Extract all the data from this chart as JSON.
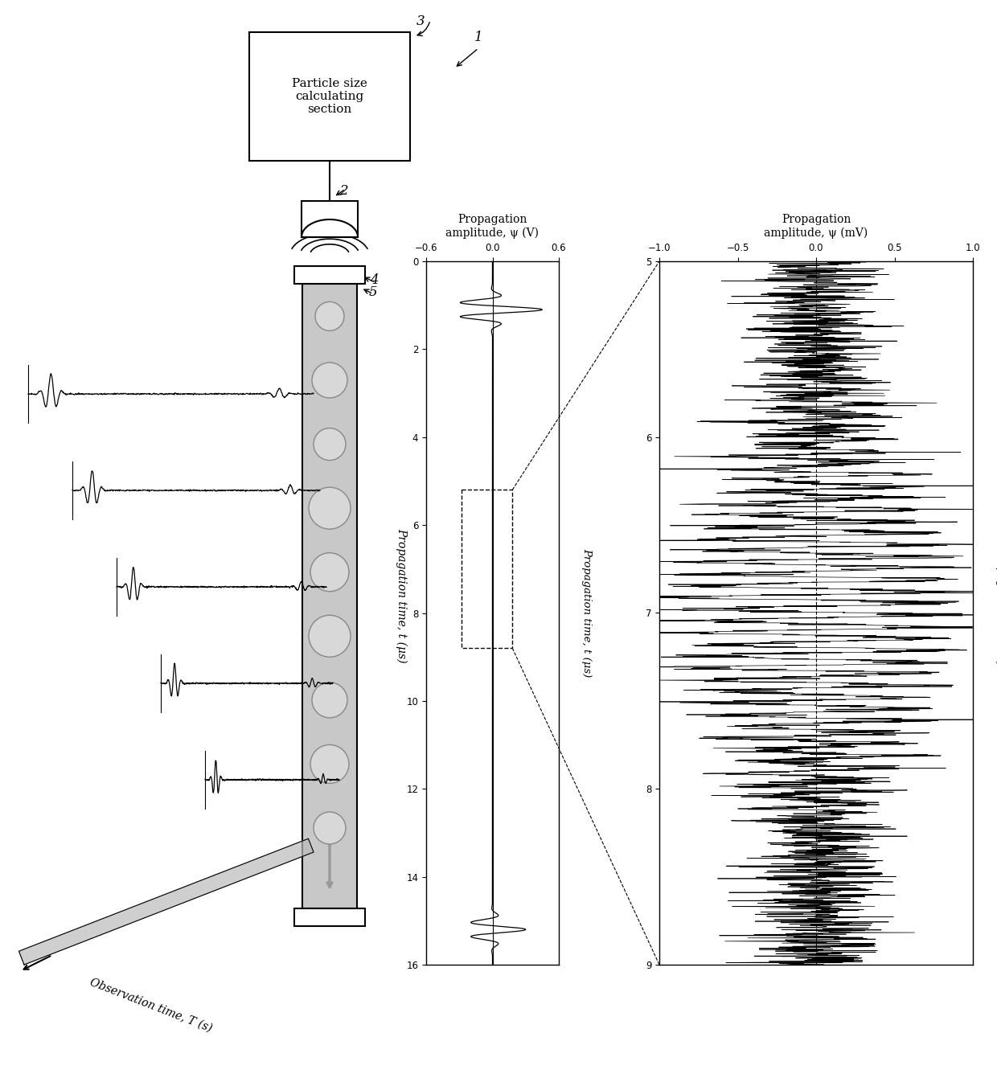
{
  "bg_color": "#ffffff",
  "box_label": "Particle size\ncalculating\nsection",
  "label_1": "1",
  "label_2": "2",
  "label_3": "3",
  "label_4": "4",
  "label_5": "5",
  "graph1_title_line1": "Propagation",
  "graph1_title_line2": "amplitude, ψ (V)",
  "graph2_title_line1": "Propagation",
  "graph2_title_line2": "amplitude, ψ (mV)",
  "graph1_xlabel": "Propagation time, t (μs)",
  "graph2_xlabel": "Propagation time, t (μs)",
  "obs_label": "Observation time, T (s)",
  "prop_label": "Propagation time, t (μs)",
  "graph1_xlim": [
    -0.6,
    0.6
  ],
  "graph1_ylim": [
    0,
    16
  ],
  "graph2_xlim": [
    -1.0,
    1.0
  ],
  "graph2_ylim": [
    5,
    9
  ],
  "graph1_yticks": [
    0,
    2,
    4,
    6,
    8,
    10,
    12,
    14,
    16
  ],
  "graph1_xticks": [
    -0.6,
    0,
    0.6
  ],
  "graph2_yticks": [
    5,
    6,
    7,
    8,
    9
  ],
  "graph2_xticks": [
    -1.0,
    -0.5,
    0,
    0.5,
    1.0
  ],
  "col_color": "#c8c8c8",
  "particle_color": "#d8d8d8",
  "arrow_color": "#999999",
  "obs_arrow_color": "#aaaaaa"
}
